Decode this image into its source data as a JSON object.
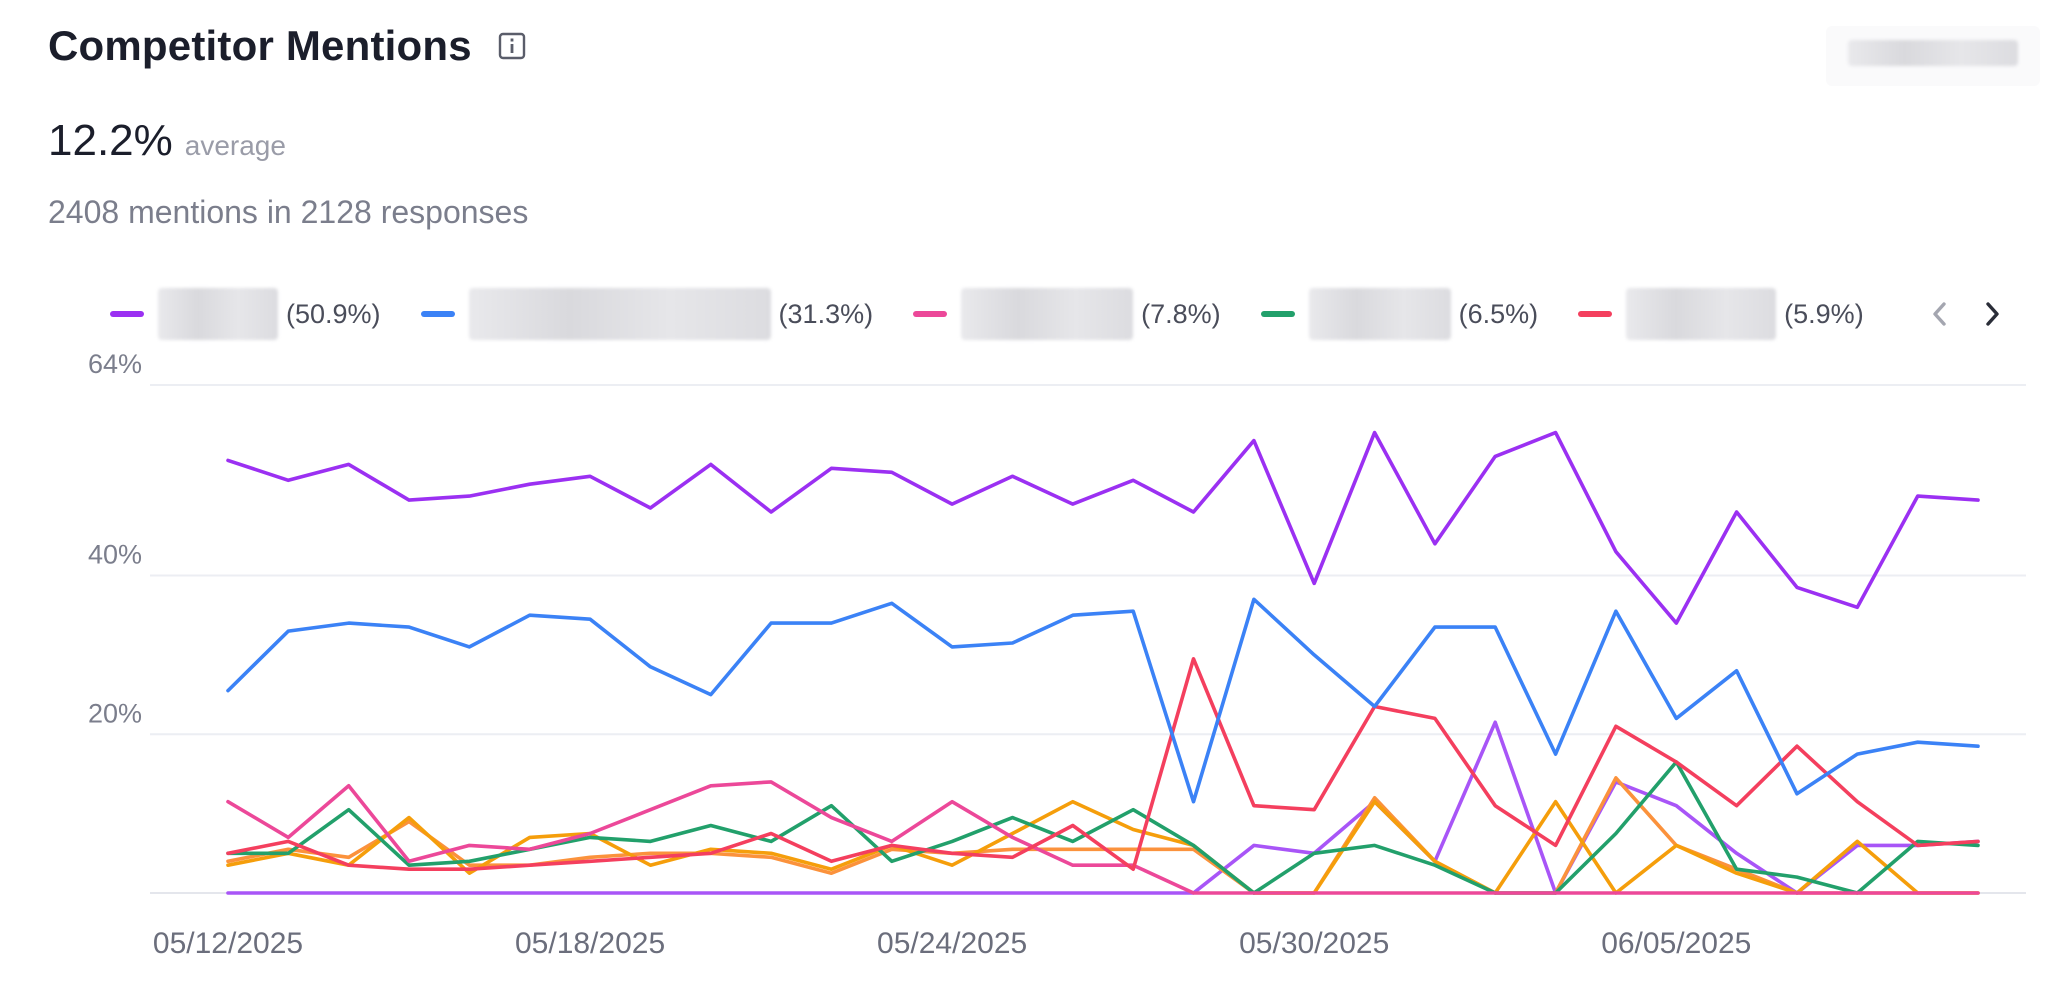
{
  "header": {
    "title": "Competitor Mentions",
    "info_icon": "info-icon"
  },
  "summary": {
    "average_value": "12.2%",
    "average_label": "average",
    "subtitle": "2408 mentions in 2128 responses"
  },
  "nav": {
    "prev_icon": "chevron-left-icon",
    "next_icon": "chevron-right-icon"
  },
  "legend": [
    {
      "pct": "(50.9%)",
      "color": "#9b30f2"
    },
    {
      "pct": "(31.3%)",
      "color": "#3b82f6"
    },
    {
      "pct": "(7.8%)",
      "color": "#ec4899"
    },
    {
      "pct": "(6.5%)",
      "color": "#22a06b"
    },
    {
      "pct": "(5.9%)",
      "color": "#f43f5e"
    }
  ],
  "chart_data": {
    "type": "line",
    "x": [
      "05/12/2025",
      "05/13/2025",
      "05/14/2025",
      "05/15/2025",
      "05/16/2025",
      "05/17/2025",
      "05/18/2025",
      "05/19/2025",
      "05/20/2025",
      "05/21/2025",
      "05/22/2025",
      "05/23/2025",
      "05/24/2025",
      "05/25/2025",
      "05/26/2025",
      "05/27/2025",
      "05/28/2025",
      "05/29/2025",
      "05/30/2025",
      "05/31/2025",
      "06/01/2025",
      "06/02/2025",
      "06/03/2025",
      "06/04/2025",
      "06/05/2025",
      "06/06/2025",
      "06/07/2025",
      "06/08/2025",
      "06/09/2025",
      "06/10/2025"
    ],
    "x_tick_labels": [
      "05/12/2025",
      "05/18/2025",
      "05/24/2025",
      "05/30/2025",
      "06/05/2025"
    ],
    "y_tick_labels": [
      "64%",
      "40%",
      "20%"
    ],
    "ylim": [
      0,
      64
    ],
    "grid": true,
    "legend_position": "top",
    "series": [
      {
        "color": "#9b30f2",
        "values": [
          54.5,
          52,
          54,
          49.5,
          50,
          51.5,
          52.5,
          48.5,
          54,
          48,
          53.5,
          53,
          49,
          52.5,
          49,
          52,
          48,
          57,
          39,
          58,
          44,
          55,
          58,
          43,
          34,
          48,
          38.5,
          36,
          50,
          49.5
        ]
      },
      {
        "color": "#3b82f6",
        "values": [
          25.5,
          33,
          34,
          33.5,
          31,
          35,
          34.5,
          28.5,
          25,
          34,
          34,
          36.5,
          31,
          31.5,
          35,
          35.5,
          11.5,
          37,
          30,
          23.5,
          33.5,
          33.5,
          17.5,
          35.5,
          22,
          28,
          12.5,
          17.5,
          19,
          18.5
        ]
      },
      {
        "color": "#ec4899",
        "values": [
          11.5,
          7,
          13.5,
          4,
          6,
          5.5,
          7.5,
          10.5,
          13.5,
          14,
          9.5,
          6.5,
          11.5,
          7,
          3.5,
          3.5,
          0,
          0,
          0,
          0,
          0,
          0,
          0,
          0,
          0,
          0,
          0,
          0,
          0,
          0
        ]
      },
      {
        "color": "#22a06b",
        "values": [
          5,
          5,
          10.5,
          3.5,
          4,
          5.5,
          7,
          6.5,
          8.5,
          6.5,
          11,
          4,
          6.5,
          9.5,
          6.5,
          10.5,
          6,
          0,
          5,
          6,
          3.5,
          0,
          0,
          7.5,
          16.5,
          3,
          2,
          0,
          6.5,
          6
        ]
      },
      {
        "color": "#f43f5e",
        "values": [
          5,
          6.5,
          3.5,
          3,
          3,
          3.5,
          4,
          4.5,
          5,
          7.5,
          4,
          6,
          5,
          4.5,
          8.5,
          3,
          29.5,
          11,
          10.5,
          23.5,
          22,
          11,
          6,
          21,
          16.5,
          11,
          18.5,
          11.5,
          6,
          6.5
        ]
      },
      {
        "color": "#f59e0b",
        "values": [
          3.5,
          5,
          3.5,
          9.5,
          2.5,
          7,
          7.5,
          3.5,
          5.5,
          5,
          3,
          6,
          3.5,
          7.5,
          11.5,
          8,
          6,
          0,
          0,
          11.5,
          4,
          0,
          11.5,
          0,
          6,
          2.5,
          0,
          6.5,
          0,
          0
        ]
      },
      {
        "color": "#fb923c",
        "values": [
          4,
          5.5,
          4.5,
          9,
          3.5,
          3.5,
          4.5,
          5,
          5,
          4.5,
          2.5,
          5.5,
          5,
          5.5,
          5.5,
          5.5,
          5.5,
          0,
          0,
          12,
          4,
          0,
          0,
          14.5,
          6,
          3,
          0,
          0,
          0,
          0
        ]
      },
      {
        "color": "#a855f7",
        "values": [
          0,
          0,
          0,
          0,
          0,
          0,
          0,
          0,
          0,
          0,
          0,
          0,
          0,
          0,
          0,
          0,
          0,
          6,
          5,
          11.5,
          4,
          21.5,
          0,
          14,
          11,
          5,
          0,
          6,
          6,
          6.5
        ]
      }
    ]
  }
}
